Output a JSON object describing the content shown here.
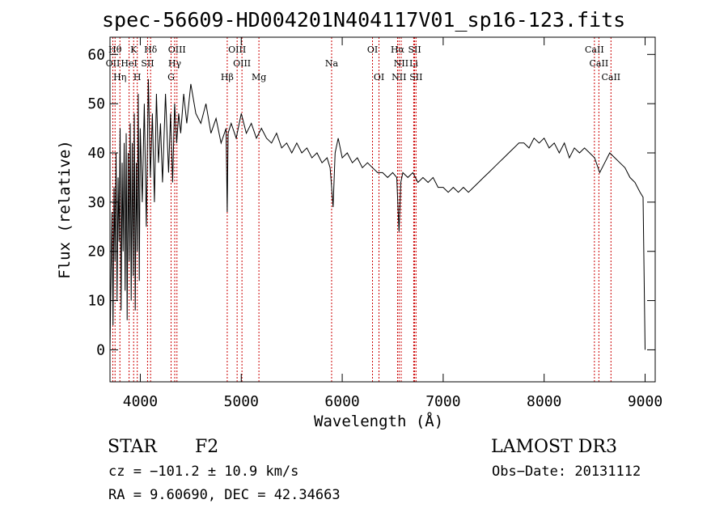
{
  "chart_data": {
    "type": "line",
    "title": "spec-56609-HD004201N404117V01_sp16-123.fits",
    "xlabel": "Wavelength (Å)",
    "ylabel": "Flux (relative)",
    "xlim": [
      3700,
      9100
    ],
    "ylim": [
      -6.5,
      63.5
    ],
    "xticks": [
      4000,
      5000,
      6000,
      7000,
      8000,
      9000
    ],
    "yticks": [
      0,
      10,
      20,
      30,
      40,
      50,
      60
    ],
    "grid": false,
    "series": [
      {
        "name": "flux",
        "x": [
          3700,
          3710,
          3720,
          3730,
          3740,
          3750,
          3760,
          3770,
          3780,
          3790,
          3800,
          3810,
          3820,
          3830,
          3840,
          3850,
          3860,
          3870,
          3880,
          3890,
          3900,
          3910,
          3920,
          3930,
          3940,
          3950,
          3960,
          3970,
          3980,
          3990,
          4000,
          4020,
          4040,
          4060,
          4080,
          4100,
          4120,
          4140,
          4160,
          4180,
          4200,
          4220,
          4250,
          4280,
          4300,
          4320,
          4340,
          4360,
          4380,
          4400,
          4430,
          4460,
          4500,
          4550,
          4600,
          4650,
          4700,
          4750,
          4800,
          4850,
          4861,
          4870,
          4900,
          4950,
          5000,
          5050,
          5100,
          5150,
          5200,
          5250,
          5300,
          5350,
          5400,
          5450,
          5500,
          5550,
          5600,
          5650,
          5700,
          5750,
          5800,
          5850,
          5880,
          5895,
          5910,
          5930,
          5960,
          6000,
          6050,
          6100,
          6150,
          6200,
          6250,
          6300,
          6350,
          6400,
          6450,
          6500,
          6540,
          6563,
          6580,
          6600,
          6650,
          6700,
          6750,
          6800,
          6850,
          6900,
          6950,
          7000,
          7050,
          7100,
          7150,
          7200,
          7250,
          7300,
          7350,
          7400,
          7450,
          7500,
          7550,
          7600,
          7650,
          7700,
          7750,
          7800,
          7850,
          7900,
          7950,
          8000,
          8050,
          8100,
          8150,
          8200,
          8250,
          8300,
          8350,
          8400,
          8450,
          8500,
          8550,
          8600,
          8650,
          8700,
          8750,
          8800,
          8850,
          8900,
          8950,
          8980,
          9000
        ],
        "y": [
          0,
          15,
          28,
          5,
          33,
          18,
          40,
          10,
          35,
          22,
          45,
          8,
          38,
          20,
          42,
          12,
          44,
          6,
          40,
          18,
          46,
          10,
          42,
          15,
          48,
          8,
          38,
          20,
          52,
          14,
          45,
          30,
          50,
          25,
          55,
          35,
          48,
          30,
          52,
          38,
          46,
          34,
          52,
          36,
          48,
          34,
          50,
          42,
          48,
          44,
          52,
          46,
          54,
          48,
          46,
          50,
          44,
          47,
          42,
          45,
          28,
          44,
          46,
          43,
          48,
          44,
          46,
          43,
          45,
          43,
          42,
          44,
          41,
          42,
          40,
          42,
          40,
          41,
          39,
          40,
          38,
          39,
          37,
          33,
          29,
          40,
          43,
          39,
          40,
          38,
          39,
          37,
          38,
          37,
          36,
          36,
          35,
          36,
          35,
          24,
          34,
          36,
          35,
          36,
          34,
          35,
          34,
          35,
          33,
          33,
          32,
          33,
          32,
          33,
          32,
          33,
          34,
          35,
          36,
          37,
          38,
          39,
          40,
          41,
          42,
          42,
          41,
          43,
          42,
          43,
          41,
          42,
          40,
          42,
          39,
          41,
          40,
          41,
          40,
          39,
          36,
          38,
          40,
          39,
          38,
          37,
          35,
          34,
          32,
          31,
          0
        ],
        "color": "#000000"
      }
    ],
    "lines": [
      {
        "wavelength": 3750,
        "label": "Hθ",
        "row": 0
      },
      {
        "wavelength": 3934,
        "label": "K",
        "row": 0
      },
      {
        "wavelength": 4102,
        "label": "Hδ",
        "row": 0
      },
      {
        "wavelength": 4363,
        "label": "OIII",
        "row": 0
      },
      {
        "wavelength": 4959,
        "label": "OIII",
        "row": 0
      },
      {
        "wavelength": 6300,
        "label": "OI",
        "row": 0
      },
      {
        "wavelength": 6548,
        "label": "Hα",
        "row": 0
      },
      {
        "wavelength": 6717,
        "label": "SII",
        "row": 0
      },
      {
        "wavelength": 8498,
        "label": "CaII",
        "row": 0
      },
      {
        "wavelength": 3728,
        "label": "OII",
        "row": 1
      },
      {
        "wavelength": 3889,
        "label": "HeI",
        "row": 1
      },
      {
        "wavelength": 4072,
        "label": "SII",
        "row": 1
      },
      {
        "wavelength": 4341,
        "label": "Hγ",
        "row": 1
      },
      {
        "wavelength": 5007,
        "label": "OIII",
        "row": 1
      },
      {
        "wavelength": 6584,
        "label": "NII",
        "row": 1
      },
      {
        "wavelength": 6708,
        "label": "Li",
        "row": 1
      },
      {
        "wavelength": 8542,
        "label": "CaII",
        "row": 1
      },
      {
        "wavelength": 3798,
        "label": "Hη",
        "row": 2
      },
      {
        "wavelength": 3970,
        "label": "H",
        "row": 2
      },
      {
        "wavelength": 4305,
        "label": "G",
        "row": 2
      },
      {
        "wavelength": 4861,
        "label": "Hβ",
        "row": 2
      },
      {
        "wavelength": 5175,
        "label": "Mg",
        "row": 2
      },
      {
        "wavelength": 5895,
        "label": "Na",
        "row": 1
      },
      {
        "wavelength": 6364,
        "label": "OI",
        "row": 2
      },
      {
        "wavelength": 6563,
        "label": "NII",
        "row": 2
      },
      {
        "wavelength": 6731,
        "label": "SII",
        "row": 2
      },
      {
        "wavelength": 8662,
        "label": "CaII",
        "row": 2
      }
    ],
    "line_color": "#cc0000"
  },
  "info": {
    "class_label": "STAR",
    "subclass": "F2",
    "survey": "LAMOST DR3",
    "cz": "cz = −101.2 ± 10.9 km/s",
    "obs_date": "Obs−Date: 20131112",
    "radec": "RA =   9.60690, DEC =  42.34663"
  }
}
